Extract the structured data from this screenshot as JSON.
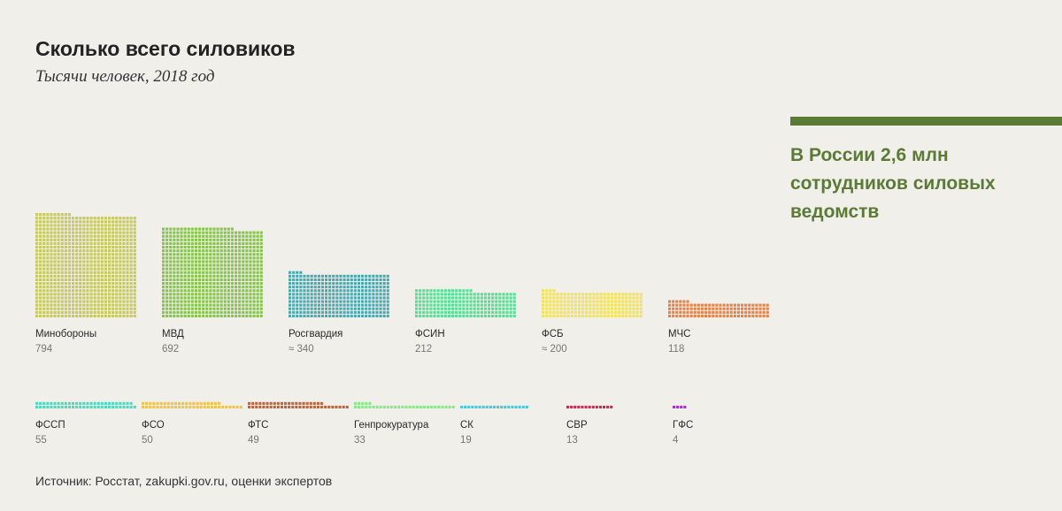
{
  "chart_data": {
    "type": "bar",
    "title": "Сколько всего силовиков",
    "subtitle": "Тысячи человек, 2018 год",
    "categories": [
      "Минобороны",
      "МВД",
      "Росгвардия",
      "ФСИН",
      "ФСБ",
      "МЧС",
      "ФССП",
      "ФСО",
      "ФТС",
      "Генпрокуратура",
      "СК",
      "СВР",
      "ГФС"
    ],
    "value_labels": [
      "794",
      "692",
      "≈ 340",
      "212",
      "≈ 200",
      "118",
      "55",
      "50",
      "49",
      "33",
      "19",
      "13",
      "4"
    ],
    "values": [
      794,
      692,
      340,
      212,
      200,
      118,
      55,
      50,
      49,
      33,
      19,
      13,
      4
    ],
    "colors": [
      "#c7c95a",
      "#86c44a",
      "#4ba8b0",
      "#54df95",
      "#f2e25c",
      "#e3834a",
      "#4fd8c0",
      "#f0c34c",
      "#b7673f",
      "#88e888",
      "#45c9dd",
      "#c42b55",
      "#9a35c4"
    ]
  },
  "callout": {
    "text": "В России 2,6 млн сотрудников силовых ведомств",
    "color": "#5b7a36"
  },
  "source": "Источник: Росстат, zakupki.gov.ru, оценки экспертов"
}
